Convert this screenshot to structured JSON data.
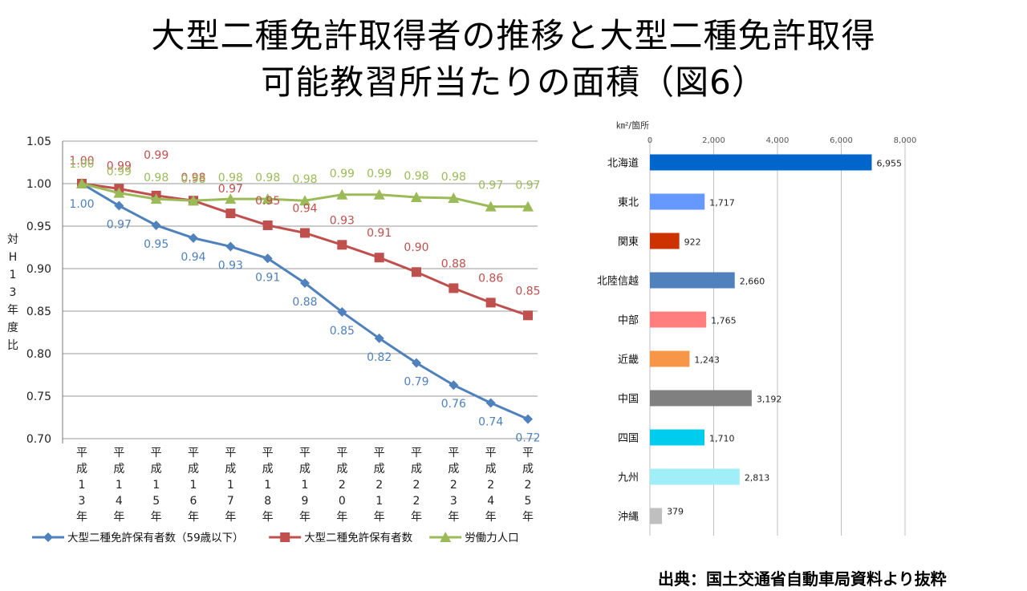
{
  "title": {
    "line1": "大型二種免許取得者の推移と大型二種免許取得",
    "line2": "可能教習所当たりの面積（図6）"
  },
  "source": "出典：国土交通省自動車局資料より抜粋",
  "chart_data": [
    {
      "type": "line",
      "ylabel": "対H13年度比",
      "ylim": [
        0.7,
        1.05
      ],
      "yticks": [
        "0.70",
        "0.75",
        "0.80",
        "0.85",
        "0.90",
        "0.95",
        "1.00",
        "1.05"
      ],
      "grid": true,
      "legend_position": "bottom",
      "categories": [
        "平成13年",
        "平成14年",
        "平成15年",
        "平成16年",
        "平成17年",
        "平成18年",
        "平成19年",
        "平成20年",
        "平成21年",
        "平成22年",
        "平成23年",
        "平成24年",
        "平成25年"
      ],
      "series": [
        {
          "name": "大型二種免許保有者数（59歳以下）",
          "color": "#4F81BD",
          "marker": "diamond",
          "values": [
            1.0,
            0.974,
            0.951,
            0.936,
            0.926,
            0.912,
            0.883,
            0.849,
            0.818,
            0.789,
            0.763,
            0.742,
            0.723
          ],
          "labels": [
            "1.00",
            "0.97",
            "0.95",
            "0.94",
            "0.93",
            "0.91",
            "0.88",
            "0.85",
            "0.82",
            "0.79",
            "0.76",
            "0.74",
            "0.72"
          ]
        },
        {
          "name": "大型二種免許保有者数",
          "color": "#C0504D",
          "marker": "square",
          "values": [
            1.0,
            0.994,
            0.986,
            0.98,
            0.965,
            0.951,
            0.942,
            0.928,
            0.913,
            0.896,
            0.877,
            0.86,
            0.845
          ],
          "labels": [
            "1.00",
            "0.99",
            "0.99",
            "0.98",
            "0.97",
            "0.95",
            "0.94",
            "0.93",
            "0.91",
            "0.90",
            "0.88",
            "0.86",
            "0.85"
          ]
        },
        {
          "name": "労働力人口",
          "color": "#9BBB59",
          "marker": "triangle",
          "values": [
            1.0,
            0.989,
            0.982,
            0.98,
            0.982,
            0.982,
            0.98,
            0.987,
            0.987,
            0.984,
            0.983,
            0.973,
            0.973
          ],
          "labels": [
            "1.00",
            "0.99",
            "0.98",
            "0.98",
            "0.98",
            "0.98",
            "0.98",
            "0.99",
            "0.99",
            "0.98",
            "0.98",
            "0.97",
            "0.97"
          ]
        }
      ]
    },
    {
      "type": "bar",
      "orientation": "horizontal",
      "unit": "㎞²/箇所",
      "xlim": [
        0,
        8000
      ],
      "xticks": [
        "0",
        "2,000",
        "4,000",
        "6,000",
        "8,000"
      ],
      "grid": true,
      "categories": [
        "北海道",
        "東北",
        "関東",
        "北陸信越",
        "中部",
        "近畿",
        "中国",
        "四国",
        "九州",
        "沖縄"
      ],
      "values": [
        6955,
        1717,
        922,
        2660,
        1765,
        1243,
        3192,
        1710,
        2813,
        379
      ],
      "labels": [
        "6,955",
        "1,717",
        "922",
        "2,660",
        "1,765",
        "1,243",
        "3,192",
        "1,710",
        "2,813",
        "379"
      ],
      "colors": [
        "#0066CC",
        "#6699FF",
        "#CC3300",
        "#4F81BD",
        "#FF7F7F",
        "#F79646",
        "#808080",
        "#00CCEE",
        "#A0EEF8",
        "#BFBFBF"
      ]
    }
  ]
}
